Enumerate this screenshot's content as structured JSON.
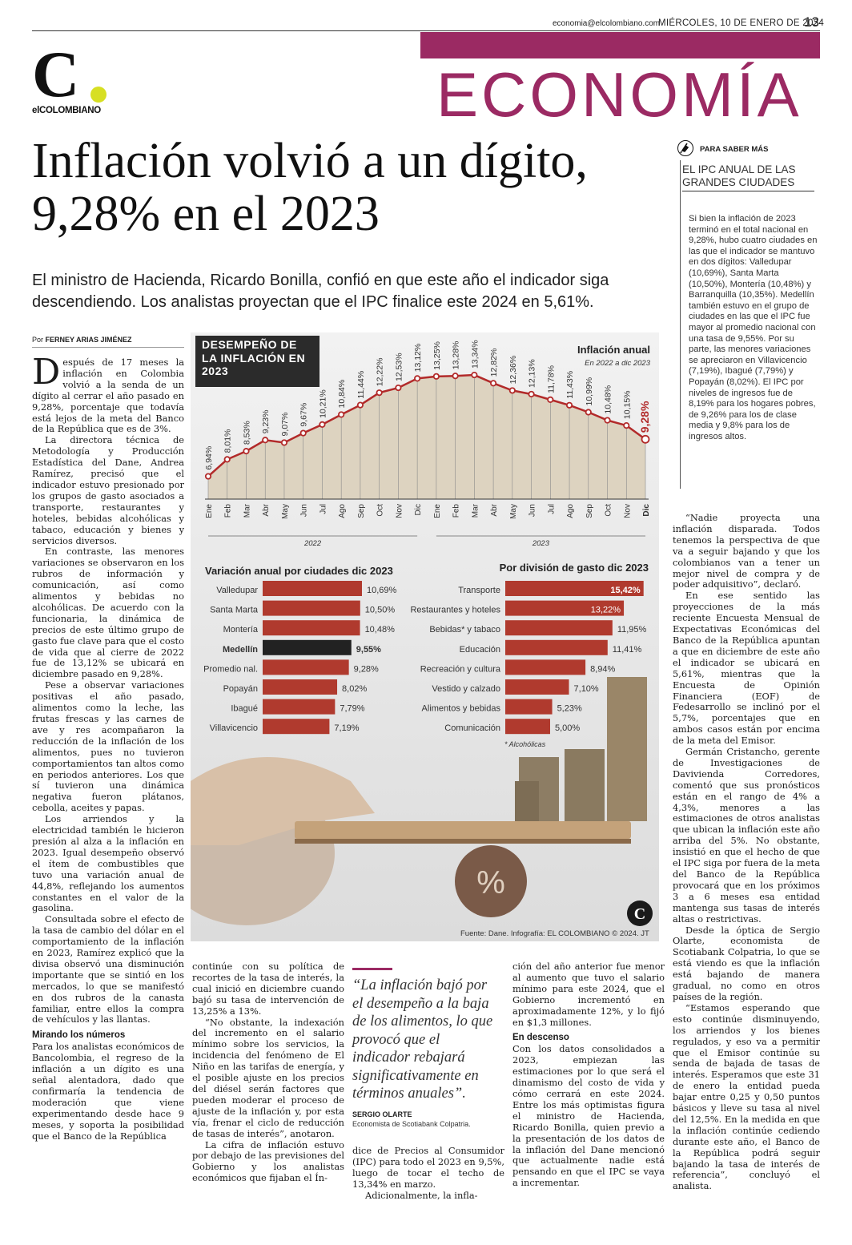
{
  "header": {
    "contact": "economia@elcolombiano.com",
    "date": "MIÉRCOLES, 10 DE ENERO DE 2024",
    "page_number": "13",
    "logo_letter": "C",
    "logo_name": "elCOLOMBIANO",
    "section": "ECONOMÍA"
  },
  "article": {
    "headline": "Inflación volvió a un dígito, 9,28% en el 2023",
    "deck": "El ministro de Hacienda, Ricardo Bonilla, confió en que este año el indicador siga descendiendo. Los analistas proyectan que el IPC finalice este 2024 en 5,61%.",
    "byline_prefix": "Por",
    "byline_name": "FERNEY ARIAS JIMÉNEZ",
    "col1_drop": "D",
    "col1_p1": "espués de 17 meses la inflación en Colombia volvió a la senda de un dígito al cerrar el año pasado en 9,28%, porcentaje que todavía está lejos de la meta del Banco de la República que es de 3%.",
    "col1_p2": "La directora técnica de Metodología y Producción Estadística del Dane, Andrea Ramírez, precisó que el indicador estuvo presionado por los grupos de gasto asociados a transporte, restaurantes y hoteles, bebidas alcohólicas y tabaco, educación y bienes y servicios diversos.",
    "col1_p3": "En contraste, las menores variaciones se observaron en los rubros de información y comunicación, así como alimentos y bebidas no alcohólicas. De acuerdo con la funcionaria, la dinámica de precios de este último grupo de gasto fue clave para que el costo de vida que al cierre de 2022 fue de 13,12% se ubicará en diciembre pasado en 9,28%.",
    "col1_p4": "Pese a observar variaciones positivas el año pasado, alimentos como la leche, las frutas frescas y las carnes de ave y res acompañaron la reducción de la inflación de los alimentos, pues no tuvieron comportamientos tan altos como en periodos anteriores. Los que sí tuvieron una dinámica negativa fueron plátanos, cebolla, aceites y papas.",
    "col1_p5": "Los arriendos y la electricidad también le hicieron presión al alza a la inflación en 2023. Igual desempeño observó el ítem de combustibles que tuvo una variación anual de 44,8%, reflejando los aumentos constantes en el valor de la gasolina.",
    "col1_p6": "Consultada sobre el efecto de la tasa de cambio del dólar en el comportamiento de la inflación en 2023, Ramírez explicó que la divisa observó una disminución importante que se sintió en los mercados, lo que se manifestó en dos rubros de la canasta familiar, entre ellos la compra de vehículos y las llantas.",
    "col1_h": "Mirando los números",
    "col1_p7": "Para los analistas económicos de Bancolombia, el regreso de la inflación a un dígito es una señal alentadora, dado que confirmaría la tendencia de moderación que viene experimentando desde hace 9 meses, y soporta la posibilidad que el Banco de la República",
    "col2_p1": "continúe con su política de recortes de la tasa de interés, la cual inició en diciembre cuando bajó su tasa de intervención de 13,25% a 13%.",
    "col2_p2": "“No obstante, la indexación del incremento en el salario mínimo sobre los servicios, la incidencia del fenómeno de El Niño en las tarifas de energía, y el posible ajuste en los precios del diésel serán factores que pueden moderar el proceso de ajuste de la inflación y, por esta vía, frenar el ciclo de reducción de tasas de interés”, anotaron.",
    "col2_p3": "La cifra de inflación estuvo por debajo de las previsiones del Gobierno y los analistas económicos que fijaban el Ín-",
    "quote": "“La inflación bajó por el desempeño a la baja de los alimentos, lo que provocó que el indicador rebajará significativamente en términos anuales”.",
    "quote_name": "SERGIO OLARTE",
    "quote_role": "Economista de Scotiabank Colpatria.",
    "col3_p1": "dice de Precios al Consumidor (IPC) para todo el 2023 en 9,5%, luego de tocar el techo de 13,34% en marzo.",
    "col3_p2": "Adicionalmente, la infla-",
    "col4_p1": "ción del año anterior fue menor al aumento que tuvo el salario mínimo para este 2024, que el Gobierno incrementó en aproximadamente 12%, y lo fijó en $1,3 millones.",
    "col4_h": "En descenso",
    "col4_p2": "Con los datos consolidados a 2023, empiezan las estimaciones por lo que será el dinamismo del costo de vida y cómo cerrará en este 2024. Entre los más optimistas figura el ministro de Hacienda, Ricardo Bonilla, quien previo a la presentación de los datos de la inflación del Dane mencionó que actualmente nadie está pensando en que el IPC se vaya a incrementar.",
    "col5_p1": "“Nadie proyecta una inflación disparada. Todos tenemos la perspectiva de que va a seguir bajando y que los colombianos van a tener un mejor nivel de compra y de poder adquisitivo”, declaró.",
    "col5_p2": "En ese sentido las proyecciones de la más reciente Encuesta Mensual de Expectativas Económicas del Banco de la República apuntan a que en diciembre de este año el indicador se ubicará en 5,61%, mientras que la Encuesta de Opinión Financiera (EOF) de Fedesarrollo se inclinó por el 5,7%, porcentajes que en ambos casos están por encima de la meta del Emisor.",
    "col5_p3": "Germán Cristancho, gerente de Investigaciones de Davivienda Corredores, comentó que sus pronósticos están en el rango de 4% a 4,3%, menores a las estimaciones de otros analistas que ubican la inflación este año arriba del 5%. No obstante, insistió en que el hecho de que el IPC siga por fuera de la meta del Banco de la República provocará que en los próximos 3 a 6 meses esa entidad mantenga sus tasas de interés altas o restrictivas.",
    "col5_p4": "Desde la óptica de Sergio Olarte, economista de Scotiabank Colpatria, lo que se está viendo es que la inflación está bajando de manera gradual, no como en otros países de la región.",
    "col5_p5": "“Estamos esperando que esto continúe disminuyendo, los arriendos y los bienes regulados, y eso va a permitir que el Emisor continúe su senda de bajada de tasas de interés. Esperamos que este 31 de enero la entidad pueda bajar entre 0,25 y 0,50 puntos básicos y lleve su tasa al nivel del 12,5%. En la medida en que la inflación continúe cediendo durante este año, el Banco de la República podrá seguir bajando la tasa de interés de referencia”, concluyó el analista."
  },
  "sidebar": {
    "kicker": "PARA SABER MÁS",
    "title": "EL IPC ANUAL DE LAS GRANDES CIUDADES",
    "body": "Si bien la inflación de 2023 terminó en el total nacional en 9,28%, hubo cuatro ciudades en las que el indicador se mantuvo en dos dígitos: Valledupar (10,69%), Santa Marta (10,50%), Montería (10,48%) y Barranquilla (10,35%). Medellín también estuvo en el grupo de ciudades en las que el IPC fue mayor al promedio nacional con una tasa de 9,55%. Por su parte, las menores variaciones se apreciaron en Villavicencio (7,19%), Ibagué (7,79%) y Popayán (8,02%). El IPC por niveles de ingresos fue de 8,19% para los hogares pobres, de 9,26% para los de clase media y 9,8% para los de ingresos altos."
  },
  "infographic": {
    "box_title": "DESEMPEÑO DE LA INFLACIÓN EN 2023",
    "source": "Fuente: Dane. Infografía: EL COLOMBIANO © 2024. JT",
    "note": "* Alcohólicas"
  },
  "chart_data": [
    {
      "type": "area",
      "title": "Inflación anual",
      "subtitle": "En 2022 a dic 2023",
      "x": [
        "Ene",
        "Feb",
        "Mar",
        "Abr",
        "May",
        "Jun",
        "Jul",
        "Ago",
        "Sep",
        "Oct",
        "Nov",
        "Dic",
        "Ene",
        "Feb",
        "Mar",
        "Abr",
        "May",
        "Jun",
        "Jul",
        "Ago",
        "Sep",
        "Oct",
        "Nov",
        "Dic"
      ],
      "x_groups": [
        "2022",
        "2023"
      ],
      "labels": [
        "6,94%",
        "8,01%",
        "8,53%",
        "9,23%",
        "9,07%",
        "9,67%",
        "10,21%",
        "10,84%",
        "11,44%",
        "12,22%",
        "12,53%",
        "13,12%",
        "13,25%",
        "13,28%",
        "13,34%",
        "12,82%",
        "12,36%",
        "12,13%",
        "11,78%",
        "11,43%",
        "10,99%",
        "10,48%",
        "10,15%",
        "9,28%"
      ],
      "values": [
        6.94,
        8.01,
        8.53,
        9.23,
        9.07,
        9.67,
        10.21,
        10.84,
        11.44,
        12.22,
        12.53,
        13.12,
        13.25,
        13.28,
        13.34,
        12.82,
        12.36,
        12.13,
        11.78,
        11.43,
        10.99,
        10.48,
        10.15,
        9.28
      ],
      "colors": {
        "fill": "#ddd3c0",
        "line": "#b22a2a",
        "grid": "#8a8a8a"
      }
    },
    {
      "type": "bar",
      "title": "Variación anual por ciudades dic 2023",
      "categories": [
        "Valledupar",
        "Santa Marta",
        "Montería",
        "Medellín",
        "Promedio nal.",
        "Popayán",
        "Ibagué",
        "Villavicencio"
      ],
      "labels": [
        "10,69%",
        "10,50%",
        "10,48%",
        "9,55%",
        "9,28%",
        "8,02%",
        "7,79%",
        "7,19%"
      ],
      "values": [
        10.69,
        10.5,
        10.48,
        9.55,
        9.28,
        8.02,
        7.79,
        7.19
      ],
      "highlight": "Medellín",
      "colors": {
        "bar": "#b03a2e",
        "highlight": "#222222"
      }
    },
    {
      "type": "bar",
      "title": "Por división de gasto dic 2023",
      "categories": [
        "Transporte",
        "Restaurantes y hoteles",
        "Bebidas* y tabaco",
        "Educación",
        "Recreación y cultura",
        "Vestido y calzado",
        "Alimentos y bebidas",
        "Comunicación"
      ],
      "labels": [
        "15,42%",
        "13,22%",
        "11,95%",
        "11,41%",
        "8,94%",
        "7,10%",
        "5,23%",
        "5,00%"
      ],
      "values": [
        15.42,
        13.22,
        11.95,
        11.41,
        8.94,
        7.1,
        5.23,
        5.0
      ],
      "colors": {
        "bar": "#b03a2e"
      }
    }
  ]
}
